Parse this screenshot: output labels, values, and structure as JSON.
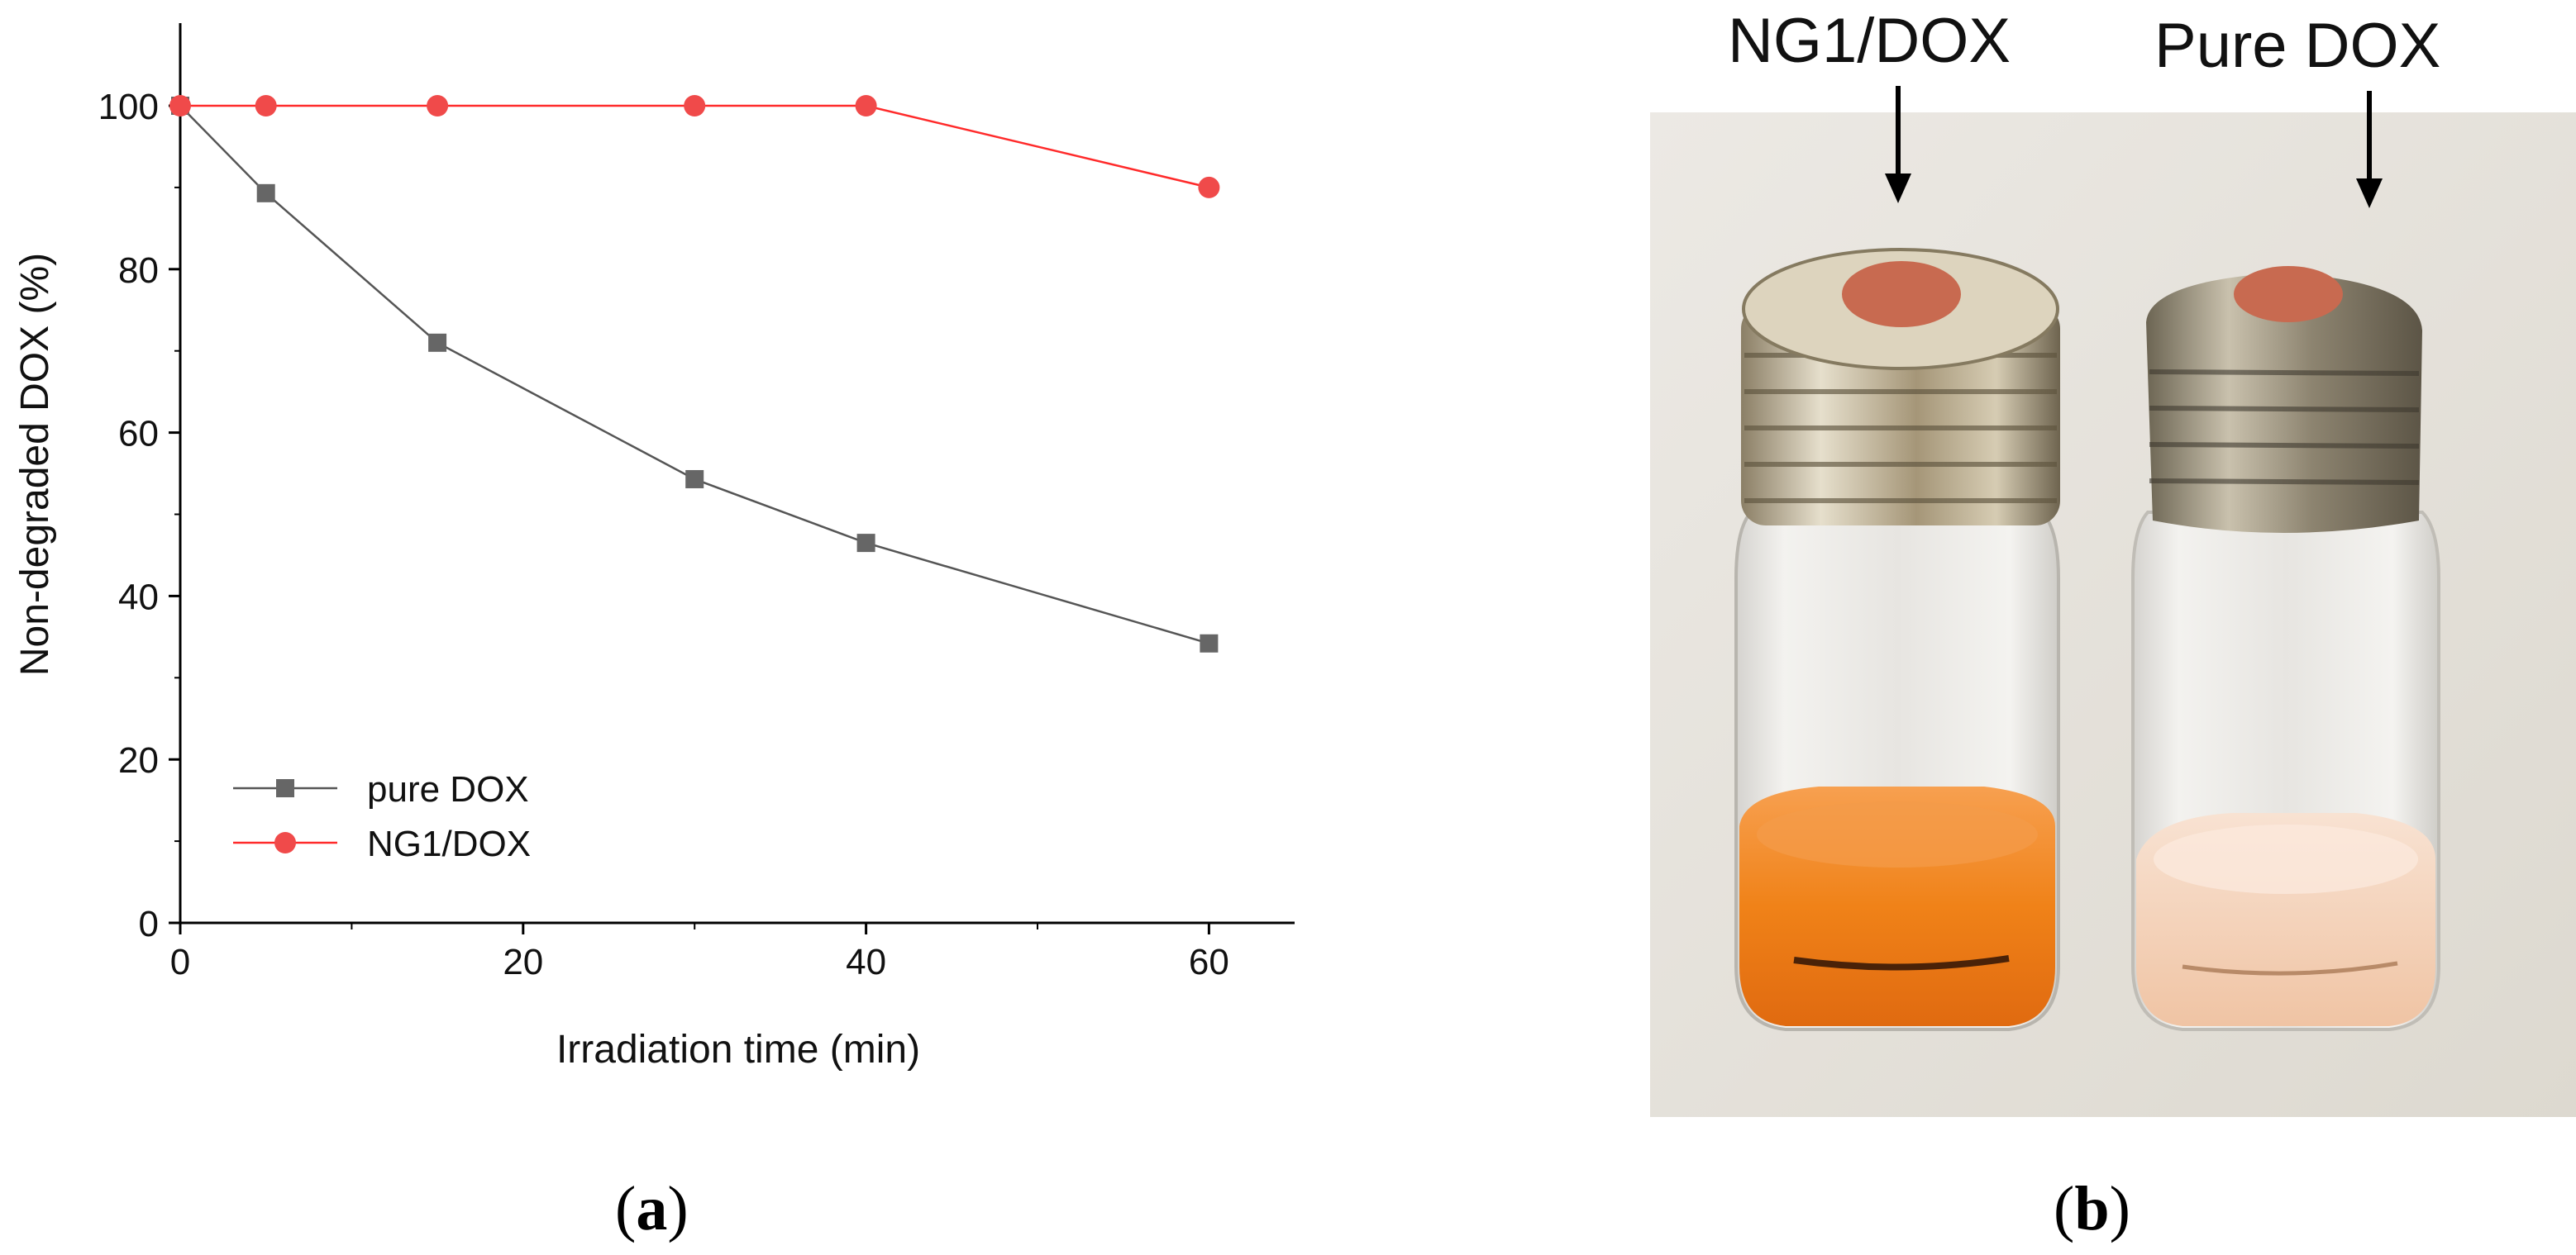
{
  "chart_data": {
    "type": "line",
    "title": "",
    "xlabel": "Irradiation time (min)",
    "ylabel": "Non-degraded DOX (%)",
    "xlim": [
      0,
      65
    ],
    "ylim": [
      0,
      110
    ],
    "x_ticks": [
      0,
      20,
      40,
      60
    ],
    "y_ticks": [
      0,
      20,
      40,
      60,
      80,
      100
    ],
    "x_minor_ticks": [
      10,
      30,
      50
    ],
    "legend_position": "bottom-left",
    "series": [
      {
        "name": "pure DOX",
        "marker": "square",
        "color": "#666666",
        "line_color": "#555555",
        "x": [
          0,
          5,
          15,
          30,
          40,
          60
        ],
        "values": [
          100,
          89.3,
          71,
          54.3,
          46.5,
          34.2
        ]
      },
      {
        "name": "NG1/DOX",
        "marker": "circle",
        "color": "#f04a4a",
        "line_color": "#ff2a2a",
        "x": [
          0,
          5,
          15,
          30,
          40,
          60
        ],
        "values": [
          100,
          100,
          100,
          100,
          100,
          90
        ]
      }
    ]
  },
  "panels": {
    "a_label": "a",
    "b_label": "b"
  },
  "photo": {
    "left_vial_label": "NG1/DOX",
    "right_vial_label": "Pure DOX",
    "left_solution_color": "#f08218",
    "right_solution_color": "#f6d2b8",
    "background_color": "#e8e6e0",
    "cap_color": "#b9a988",
    "septum_color": "#c86a50"
  }
}
